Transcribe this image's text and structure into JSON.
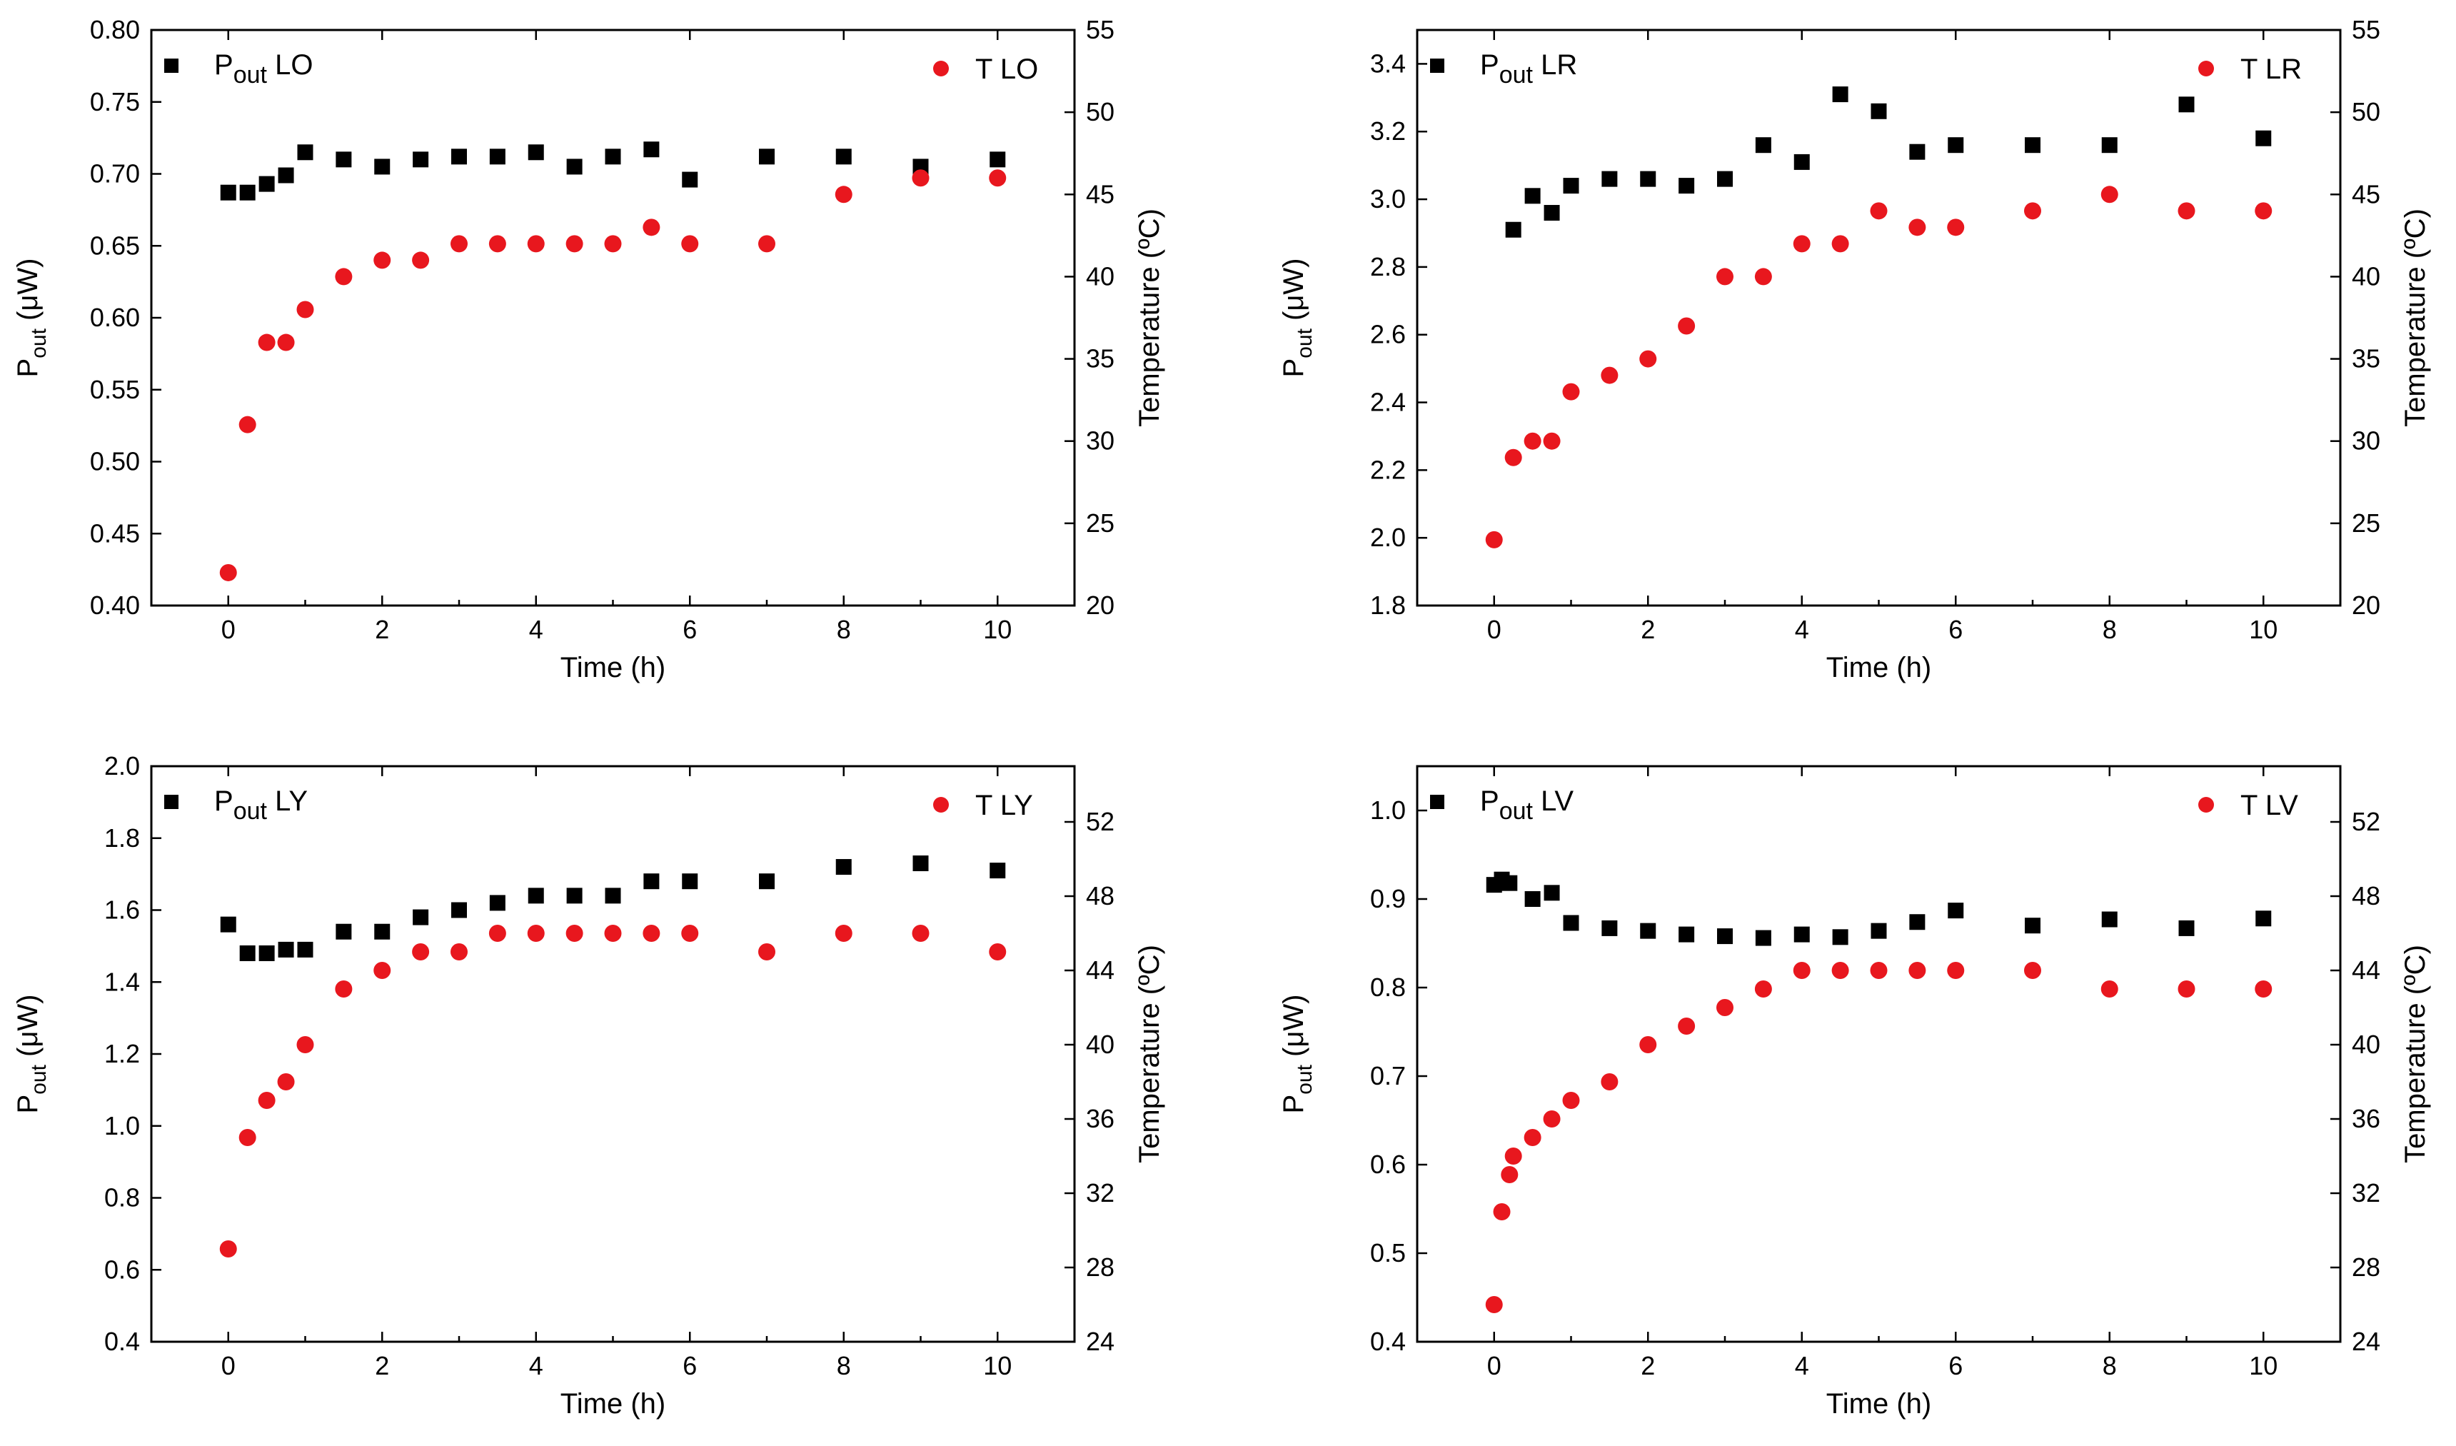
{
  "figure": {
    "charts_note": "four dual-axis scatter panels"
  },
  "chart_data": [
    {
      "type": "scatter",
      "id": "LO",
      "xlabel": "Time (h)",
      "ylabel_main": "P",
      "ylabel_sub": "out",
      "ylabel_rest": " (μW)",
      "y2label": "Temperature (ºC)",
      "xlim": [
        -1,
        11
      ],
      "xticks": [
        0,
        2,
        4,
        6,
        8,
        10
      ],
      "ylim": [
        0.4,
        0.8
      ],
      "yticks": [
        0.4,
        0.45,
        0.5,
        0.55,
        0.6,
        0.65,
        0.7,
        0.75,
        0.8
      ],
      "ytick_decimals": 2,
      "y2lim": [
        20,
        55
      ],
      "y2ticks": [
        20,
        25,
        30,
        35,
        40,
        45,
        50,
        55
      ],
      "series": [
        {
          "name": "P LO",
          "legend_main": "P",
          "legend_sub": "out",
          "legend_rest": " LO",
          "axis": "left",
          "marker": "square",
          "color": "#000000",
          "x": [
            0,
            0.25,
            0.5,
            0.75,
            1,
            1.5,
            2,
            2.5,
            3,
            3.5,
            4,
            4.5,
            5,
            5.5,
            6,
            7,
            8,
            9,
            10
          ],
          "y": [
            0.687,
            0.687,
            0.693,
            0.699,
            0.715,
            0.71,
            0.705,
            0.71,
            0.712,
            0.712,
            0.715,
            0.705,
            0.712,
            0.717,
            0.696,
            0.712,
            0.712,
            0.705,
            0.71
          ]
        },
        {
          "name": "T LO",
          "legend_main": "T LO",
          "legend_sub": "",
          "legend_rest": "",
          "axis": "right",
          "marker": "circle",
          "color": "#e8171e",
          "x": [
            0,
            0.25,
            0.5,
            0.75,
            1,
            1.5,
            2,
            2.5,
            3,
            3.5,
            4,
            4.5,
            5,
            5.5,
            6,
            7,
            8,
            9,
            10
          ],
          "y": [
            22,
            31,
            36,
            36,
            38,
            40,
            41,
            41,
            42,
            42,
            42,
            42,
            42,
            43,
            42,
            42,
            45,
            46,
            46
          ]
        }
      ]
    },
    {
      "type": "scatter",
      "id": "LR",
      "xlabel": "Time (h)",
      "ylabel_main": "P",
      "ylabel_sub": "out",
      "ylabel_rest": " (μW)",
      "y2label": "Temperature (ºC)",
      "xlim": [
        -1,
        11
      ],
      "xticks": [
        0,
        2,
        4,
        6,
        8,
        10
      ],
      "ylim": [
        1.8,
        3.5
      ],
      "yticks": [
        1.8,
        2.0,
        2.2,
        2.4,
        2.6,
        2.8,
        3.0,
        3.2,
        3.4
      ],
      "ytick_decimals": 1,
      "y2lim": [
        20,
        55
      ],
      "y2ticks": [
        20,
        25,
        30,
        35,
        40,
        45,
        50,
        55
      ],
      "series": [
        {
          "name": "P LR",
          "legend_main": "P",
          "legend_sub": "out",
          "legend_rest": " LR",
          "axis": "left",
          "marker": "square",
          "color": "#000000",
          "x": [
            0.25,
            0.5,
            0.75,
            1,
            1.5,
            2,
            2.5,
            3,
            3.5,
            4,
            4.5,
            5,
            5.5,
            6,
            7,
            8,
            9,
            10
          ],
          "y": [
            2.91,
            3.01,
            2.96,
            3.04,
            3.06,
            3.06,
            3.04,
            3.06,
            3.16,
            3.11,
            3.31,
            3.26,
            3.14,
            3.16,
            3.16,
            3.16,
            3.28,
            3.18
          ]
        },
        {
          "name": "T LR",
          "legend_main": "T LR",
          "legend_sub": "",
          "legend_rest": "",
          "axis": "right",
          "marker": "circle",
          "color": "#e8171e",
          "x": [
            0,
            0.25,
            0.5,
            0.75,
            1,
            1.5,
            2,
            2.5,
            3,
            3.5,
            4,
            4.5,
            5,
            5.5,
            6,
            7,
            8,
            9,
            10
          ],
          "y": [
            24,
            29,
            30,
            30,
            33,
            34,
            35,
            37,
            40,
            40,
            42,
            42,
            44,
            43,
            43,
            44,
            45,
            44,
            44
          ]
        }
      ]
    },
    {
      "type": "scatter",
      "id": "LY",
      "xlabel": "Time (h)",
      "ylabel_main": "P",
      "ylabel_sub": "out",
      "ylabel_rest": " (μW)",
      "y2label": "Temperature (ºC)",
      "xlim": [
        -1,
        11
      ],
      "xticks": [
        0,
        2,
        4,
        6,
        8,
        10
      ],
      "ylim": [
        0.4,
        2.0
      ],
      "yticks": [
        0.4,
        0.6,
        0.8,
        1.0,
        1.2,
        1.4,
        1.6,
        1.8,
        2.0
      ],
      "ytick_decimals": 1,
      "y2lim": [
        24,
        55
      ],
      "y2ticks": [
        24,
        28,
        32,
        36,
        40,
        44,
        48,
        52
      ],
      "series": [
        {
          "name": "P LY",
          "legend_main": "P",
          "legend_sub": "out",
          "legend_rest": "  LY",
          "axis": "left",
          "marker": "square",
          "color": "#000000",
          "x": [
            0,
            0.25,
            0.5,
            0.75,
            1,
            1.5,
            2,
            2.5,
            3,
            3.5,
            4,
            4.5,
            5,
            5.5,
            6,
            7,
            8,
            9,
            10
          ],
          "y": [
            1.56,
            1.48,
            1.48,
            1.49,
            1.49,
            1.54,
            1.54,
            1.58,
            1.6,
            1.62,
            1.64,
            1.64,
            1.64,
            1.68,
            1.68,
            1.68,
            1.72,
            1.73,
            1.71
          ]
        },
        {
          "name": "T LY",
          "legend_main": "T LY",
          "legend_sub": "",
          "legend_rest": "",
          "axis": "right",
          "marker": "circle",
          "color": "#e8171e",
          "x": [
            0,
            0.25,
            0.5,
            0.75,
            1,
            1.5,
            2,
            2.5,
            3,
            3.5,
            4,
            4.5,
            5,
            5.5,
            6,
            7,
            8,
            9,
            10
          ],
          "y": [
            29,
            35,
            37,
            38,
            40,
            43,
            44,
            45,
            45,
            46,
            46,
            46,
            46,
            46,
            46,
            45,
            46,
            46,
            45
          ]
        }
      ]
    },
    {
      "type": "scatter",
      "id": "LV",
      "xlabel": "Time (h)",
      "ylabel_main": "P",
      "ylabel_sub": "out",
      "ylabel_rest": " (μW)",
      "y2label": "Temperature (ºC)",
      "xlim": [
        -1,
        11
      ],
      "xticks": [
        0,
        2,
        4,
        6,
        8,
        10
      ],
      "ylim": [
        0.4,
        1.05
      ],
      "yticks": [
        0.4,
        0.5,
        0.6,
        0.7,
        0.8,
        0.9,
        1.0
      ],
      "ytick_decimals": 1,
      "y2lim": [
        24,
        55
      ],
      "y2ticks": [
        24,
        28,
        32,
        36,
        40,
        44,
        48,
        52
      ],
      "series": [
        {
          "name": "P LV",
          "legend_main": "P",
          "legend_sub": "out",
          "legend_rest": " LV",
          "axis": "left",
          "marker": "square",
          "color": "#000000",
          "x": [
            0,
            0.1,
            0.2,
            0.5,
            0.75,
            1,
            1.5,
            2,
            2.5,
            3,
            3.5,
            4,
            4.5,
            5,
            5.5,
            6,
            7,
            8,
            9,
            10
          ],
          "y": [
            0.916,
            0.922,
            0.918,
            0.9,
            0.907,
            0.873,
            0.867,
            0.864,
            0.86,
            0.858,
            0.856,
            0.86,
            0.857,
            0.864,
            0.874,
            0.887,
            0.87,
            0.877,
            0.867,
            0.878
          ]
        },
        {
          "name": "T LV",
          "legend_main": "T LV",
          "legend_sub": "",
          "legend_rest": "",
          "axis": "right",
          "marker": "circle",
          "color": "#e8171e",
          "x": [
            0,
            0.1,
            0.2,
            0.25,
            0.5,
            0.75,
            1,
            1.5,
            2,
            2.5,
            3,
            3.5,
            4,
            4.5,
            5,
            5.5,
            6,
            7,
            8,
            9,
            10
          ],
          "y": [
            26,
            31,
            33,
            34,
            35,
            36,
            37,
            38,
            40,
            41,
            42,
            43,
            44,
            44,
            44,
            44,
            44,
            44,
            43,
            43,
            43
          ]
        }
      ]
    }
  ]
}
